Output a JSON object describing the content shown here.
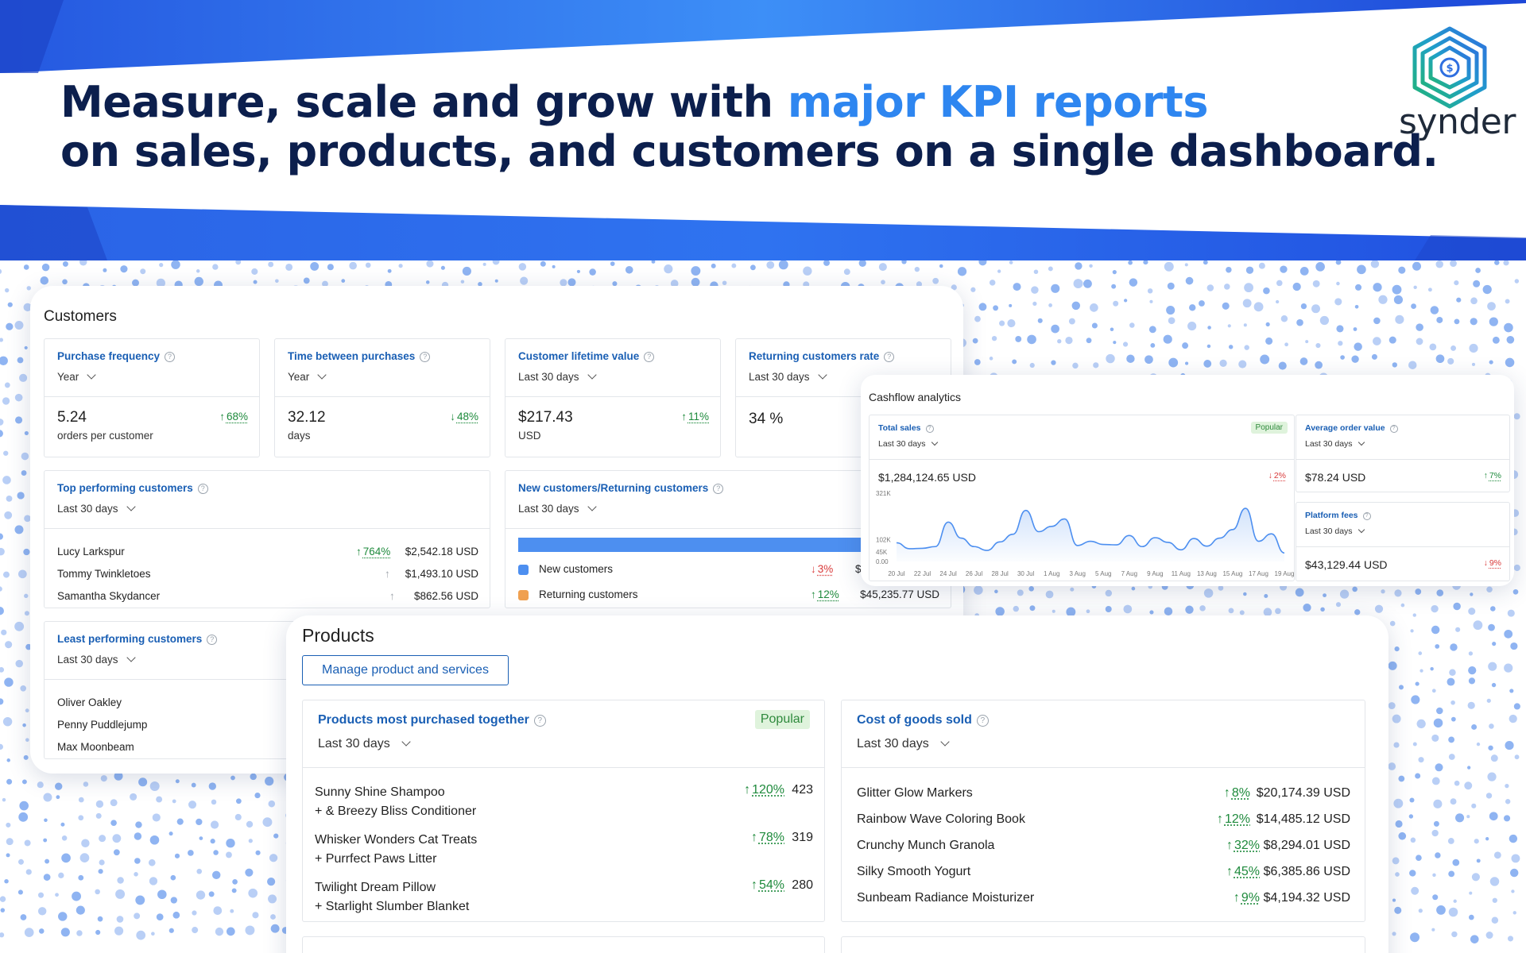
{
  "hero": {
    "headline_line1_prefix": "Measure, scale and grow with ",
    "headline_line1_highlight": "major KPI reports",
    "headline_line2": "on sales, products, and customers on a single dashboard.",
    "logo_text": "synder",
    "colors": {
      "navy": "#0c1f4d",
      "highlight": "#2e86f0",
      "band": "#2a63e6"
    }
  },
  "customers": {
    "title": "Customers",
    "kpis": [
      {
        "title": "Purchase frequency",
        "period": "Year",
        "value": "5.24",
        "unit": "orders per customer",
        "change": "68%",
        "direction": "up"
      },
      {
        "title": "Time between purchases",
        "period": "Year",
        "value": "32.12",
        "unit": "days",
        "change": "48%",
        "direction": "down-green"
      },
      {
        "title": "Customer lifetime value",
        "period": "Last 30 days",
        "value": "$217.43",
        "unit": "USD",
        "change": "11%",
        "direction": "up"
      },
      {
        "title": "Returning customers rate",
        "period": "Last 30 days",
        "value": "34 %",
        "unit": "",
        "change": "",
        "direction": ""
      }
    ],
    "top_performing": {
      "title": "Top performing customers",
      "period": "Last 30 days",
      "rows": [
        {
          "name": "Lucy Larkspur",
          "change": "764%",
          "value": "$2,542.18 USD",
          "direction": "up"
        },
        {
          "name": "Tommy Twinkletoes",
          "change": "",
          "value": "$1,493.10 USD",
          "direction": "neutral"
        },
        {
          "name": "Samantha Skydancer",
          "change": "",
          "value": "$862.56 USD",
          "direction": "neutral"
        }
      ]
    },
    "new_returning": {
      "title": "New customers/Returning customers",
      "period": "Last 30 days",
      "new_fraction": 0.88,
      "rows": [
        {
          "name": "New customers",
          "change": "3%",
          "value": "$2",
          "direction": "down",
          "color": "#4d8ff0"
        },
        {
          "name": "Returning customers",
          "change": "12%",
          "value": "$45,235.77 USD",
          "direction": "up",
          "color": "#f0a050"
        }
      ]
    },
    "least_performing": {
      "title": "Least performing customers",
      "period": "Last 30 days",
      "rows": [
        {
          "name": "Oliver Oakley"
        },
        {
          "name": "Penny Puddlejump"
        },
        {
          "name": "Max Moonbeam"
        }
      ]
    }
  },
  "cashflow": {
    "title": "Cashflow analytics",
    "total_sales": {
      "title": "Total sales",
      "badge": "Popular",
      "period": "Last 30 days",
      "value": "$1,284,124.65 USD",
      "change": "2%",
      "direction": "down"
    },
    "aov": {
      "title": "Average order value",
      "period": "Last 30 days",
      "value": "$78.24 USD",
      "change": "7%",
      "direction": "up"
    },
    "platform_fees": {
      "title": "Platform fees",
      "period": "Last 30 days",
      "value": "$43,129.44 USD",
      "change": "9%",
      "direction": "down"
    }
  },
  "chart_data": {
    "type": "area",
    "title": "",
    "xlabel": "",
    "ylabel": "",
    "y_tick_labels": [
      "321K",
      "102K",
      "45K",
      "0.00"
    ],
    "y_ticks": [
      321000,
      102000,
      45000,
      0
    ],
    "x_tick_labels": [
      "20 Jul",
      "22 Jul",
      "24 Jul",
      "26 Jul",
      "28 Jul",
      "30 Jul",
      "1 Aug",
      "3 Aug",
      "5 Aug",
      "7 Aug",
      "9 Aug",
      "11 Aug",
      "13 Aug",
      "15 Aug",
      "17 Aug",
      "19 Aug"
    ],
    "ylim": [
      0,
      321000
    ],
    "grid": false,
    "series": [
      {
        "color": "#4d8ff0",
        "x": [
          "20 Jul",
          "21 Jul",
          "22 Jul",
          "23 Jul",
          "24 Jul",
          "25 Jul",
          "26 Jul",
          "27 Jul",
          "28 Jul",
          "29 Jul",
          "30 Jul",
          "31 Jul",
          "1 Aug",
          "2 Aug",
          "3 Aug",
          "4 Aug",
          "5 Aug",
          "6 Aug",
          "7 Aug",
          "8 Aug",
          "9 Aug",
          "10 Aug",
          "11 Aug",
          "12 Aug",
          "13 Aug",
          "14 Aug",
          "15 Aug",
          "16 Aug",
          "17 Aug",
          "18 Aug",
          "19 Aug"
        ],
        "values": [
          88000,
          60000,
          62000,
          70000,
          185000,
          110000,
          70000,
          52000,
          92000,
          128000,
          240000,
          140000,
          165000,
          200000,
          75000,
          95000,
          80000,
          78000,
          122000,
          70000,
          112000,
          90000,
          55000,
          108000,
          72000,
          110000,
          150000,
          250000,
          95000,
          130000,
          40000
        ]
      }
    ]
  },
  "products": {
    "title": "Products",
    "manage_button": "Manage product and services",
    "together": {
      "title": "Products most purchased together",
      "badge": "Popular",
      "period": "Last 30 days",
      "rows": [
        {
          "line1": "Sunny Shine Shampoo",
          "line2": "+ & Breezy Bliss Conditioner",
          "change": "120%",
          "value": "423"
        },
        {
          "line1": "Whisker Wonders Cat Treats",
          "line2": "+ Purrfect Paws Litter",
          "change": "78%",
          "value": "319"
        },
        {
          "line1": "Twilight Dream Pillow",
          "line2": "+ Starlight Slumber Blanket",
          "change": "54%",
          "value": "280"
        }
      ]
    },
    "cogs": {
      "title": "Cost of goods sold",
      "period": "Last 30 days",
      "rows": [
        {
          "name": "Glitter Glow Markers",
          "change": "8%",
          "value": "$20,174.39 USD"
        },
        {
          "name": "Rainbow Wave Coloring Book",
          "change": "12%",
          "value": "$14,485.12 USD"
        },
        {
          "name": "Crunchy Munch Granola",
          "change": "32%",
          "value": "$8,294.01 USD"
        },
        {
          "name": "Silky Smooth Yogurt",
          "change": "45%",
          "value": "$6,385.86 USD"
        },
        {
          "name": "Sunbeam Radiance Moisturizer",
          "change": "9%",
          "value": "$4,194.32 USD"
        }
      ]
    }
  }
}
